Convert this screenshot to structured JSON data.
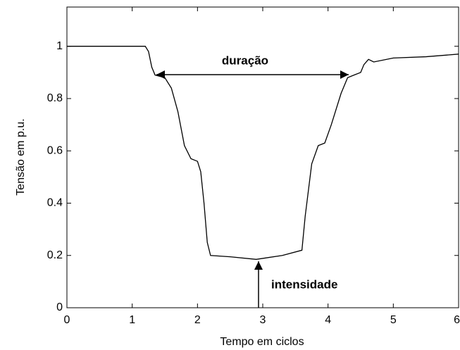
{
  "chart_data": {
    "type": "line",
    "x_label": "Tempo em ciclos",
    "y_label": "Tensão em p.u.",
    "annotations": [
      "duração",
      "intensidade"
    ],
    "color": "#000000",
    "x": [
      0,
      1.2,
      1.25,
      1.3,
      1.35,
      1.5,
      1.6,
      1.7,
      1.8,
      1.9,
      2.0,
      2.05,
      2.1,
      2.15,
      2.2,
      2.5,
      2.9,
      3.3,
      3.6,
      3.65,
      3.75,
      3.85,
      3.95,
      4.05,
      4.2,
      4.3,
      4.4,
      4.5,
      4.55,
      4.62,
      4.7,
      5.0,
      5.5,
      6.0
    ],
    "values": [
      1.0,
      1.0,
      0.98,
      0.92,
      0.89,
      0.88,
      0.84,
      0.75,
      0.62,
      0.57,
      0.56,
      0.52,
      0.4,
      0.25,
      0.2,
      0.195,
      0.185,
      0.2,
      0.22,
      0.35,
      0.55,
      0.62,
      0.63,
      0.7,
      0.82,
      0.88,
      0.89,
      0.9,
      0.93,
      0.95,
      0.94,
      0.955,
      0.96,
      0.97
    ],
    "xlim": [
      0,
      6
    ],
    "xticks": [
      0,
      1,
      2,
      3,
      4,
      5,
      6
    ],
    "ylim": [
      0,
      1.15
    ],
    "yticks": [
      0,
      0.2,
      0.4,
      0.6,
      0.8,
      1
    ]
  }
}
